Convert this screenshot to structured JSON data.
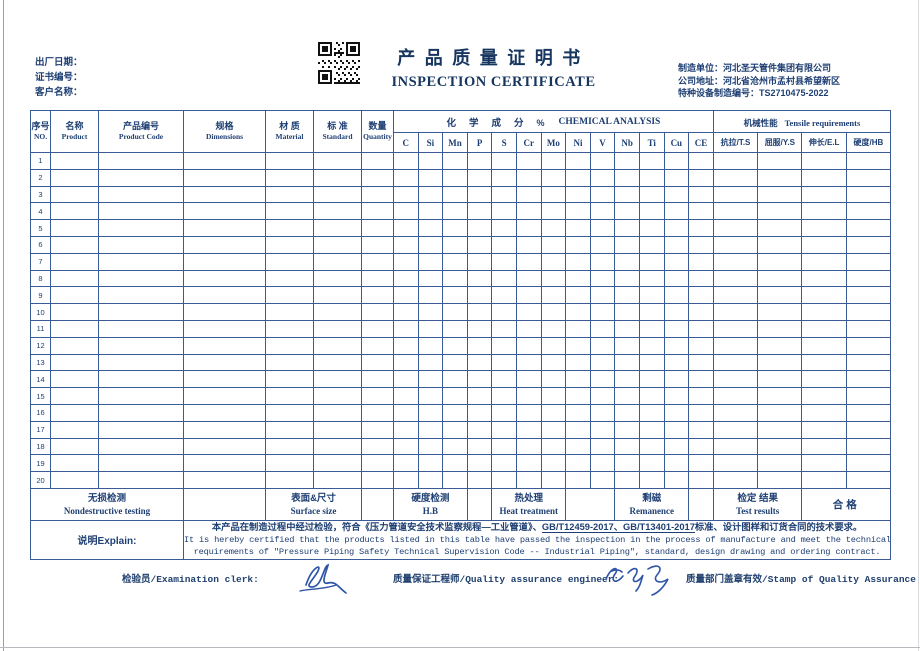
{
  "page": {
    "title_cn": "产品质量证明书",
    "title_en": "INSPECTION CERTIFICATE"
  },
  "header_left": {
    "date_label": "出厂日期：",
    "cert_no_label": "证书编号：",
    "customer_label": "客户名称："
  },
  "header_right": {
    "manufacturer": "制造单位：河北圣天管件集团有限公司",
    "address": "公司地址：河北省沧州市孟村县希望新区",
    "license": "特种设备制造编号：TS2710475-2022"
  },
  "table": {
    "columns": [
      {
        "cn": "序号",
        "en": "NO."
      },
      {
        "cn": "名称",
        "en": "Product"
      },
      {
        "cn": "产品编号",
        "en": "Product Code"
      },
      {
        "cn": "规格",
        "en": "Dimensions"
      },
      {
        "cn": "材 质",
        "en": "Material"
      },
      {
        "cn": "标 准",
        "en": "Standard"
      },
      {
        "cn": "数量",
        "en": "Quantity"
      }
    ],
    "chemical_group_cn": "化学成分",
    "chemical_group_pct": "%",
    "chemical_group_en": "CHEMICAL ANALYSIS",
    "chemical_elements": [
      "C",
      "Si",
      "Mn",
      "P",
      "S",
      "Cr",
      "Mo",
      "Ni",
      "V",
      "Nb",
      "Ti",
      "Cu",
      "CE"
    ],
    "mechanical_group_cn": "机械性能",
    "mechanical_group_en": "Tensile requirements",
    "mechanical_columns": [
      "抗拉/T.S",
      "屈服/Y.S",
      "伸长/E.L",
      "硬度/HB"
    ],
    "row_numbers": [
      "1",
      "2",
      "3",
      "4",
      "5",
      "6",
      "7",
      "8",
      "9",
      "10",
      "11",
      "12",
      "13",
      "14",
      "15",
      "16",
      "17",
      "18",
      "19",
      "20"
    ]
  },
  "inspection_row": {
    "ndt_cn": "无损检测",
    "ndt_en": "Nondestructive testing",
    "surface_cn": "表面&尺寸",
    "surface_en": "Surface size",
    "hardness_cn": "硬度检测",
    "hardness_en": "H.B",
    "heat_cn": "热处理",
    "heat_en": "Heat treatment",
    "remanence_cn": "剩磁",
    "remanence_en": "Remanence",
    "result_cn": "检定 结果",
    "result_en": "Test results",
    "result_value": "合格"
  },
  "explain": {
    "label": "说明Explain:",
    "line1_pre": "本产品在制造过程中经过检验，符合《压力管道安全技术监察规程—工业管道》、",
    "line1_underline": "GB/T12459-2017、GB/T13401-2017",
    "line1_post": "标准、设计图样和订货合同的技术要求。",
    "line2": "It is hereby certified that the products listed in this table have passed the inspection in the process of manufacture and meet the technical",
    "line3": "requirements of \"Pressure Piping Safety Technical Supervision Code -- Industrial Piping\", standard, design drawing and ordering contract."
  },
  "signatures": {
    "clerk_label": "检验员/Examination clerk:",
    "engineer_label": "质量保证工程师/Quality assurance engineer:",
    "stamp_label": "质量部门盖章有效/Stamp of Quality Assurance"
  },
  "colors": {
    "ink": "#1e3f73",
    "table_border": "#3a5c96",
    "signature_blue": "#2e55a8",
    "qr_black": "#111111"
  }
}
